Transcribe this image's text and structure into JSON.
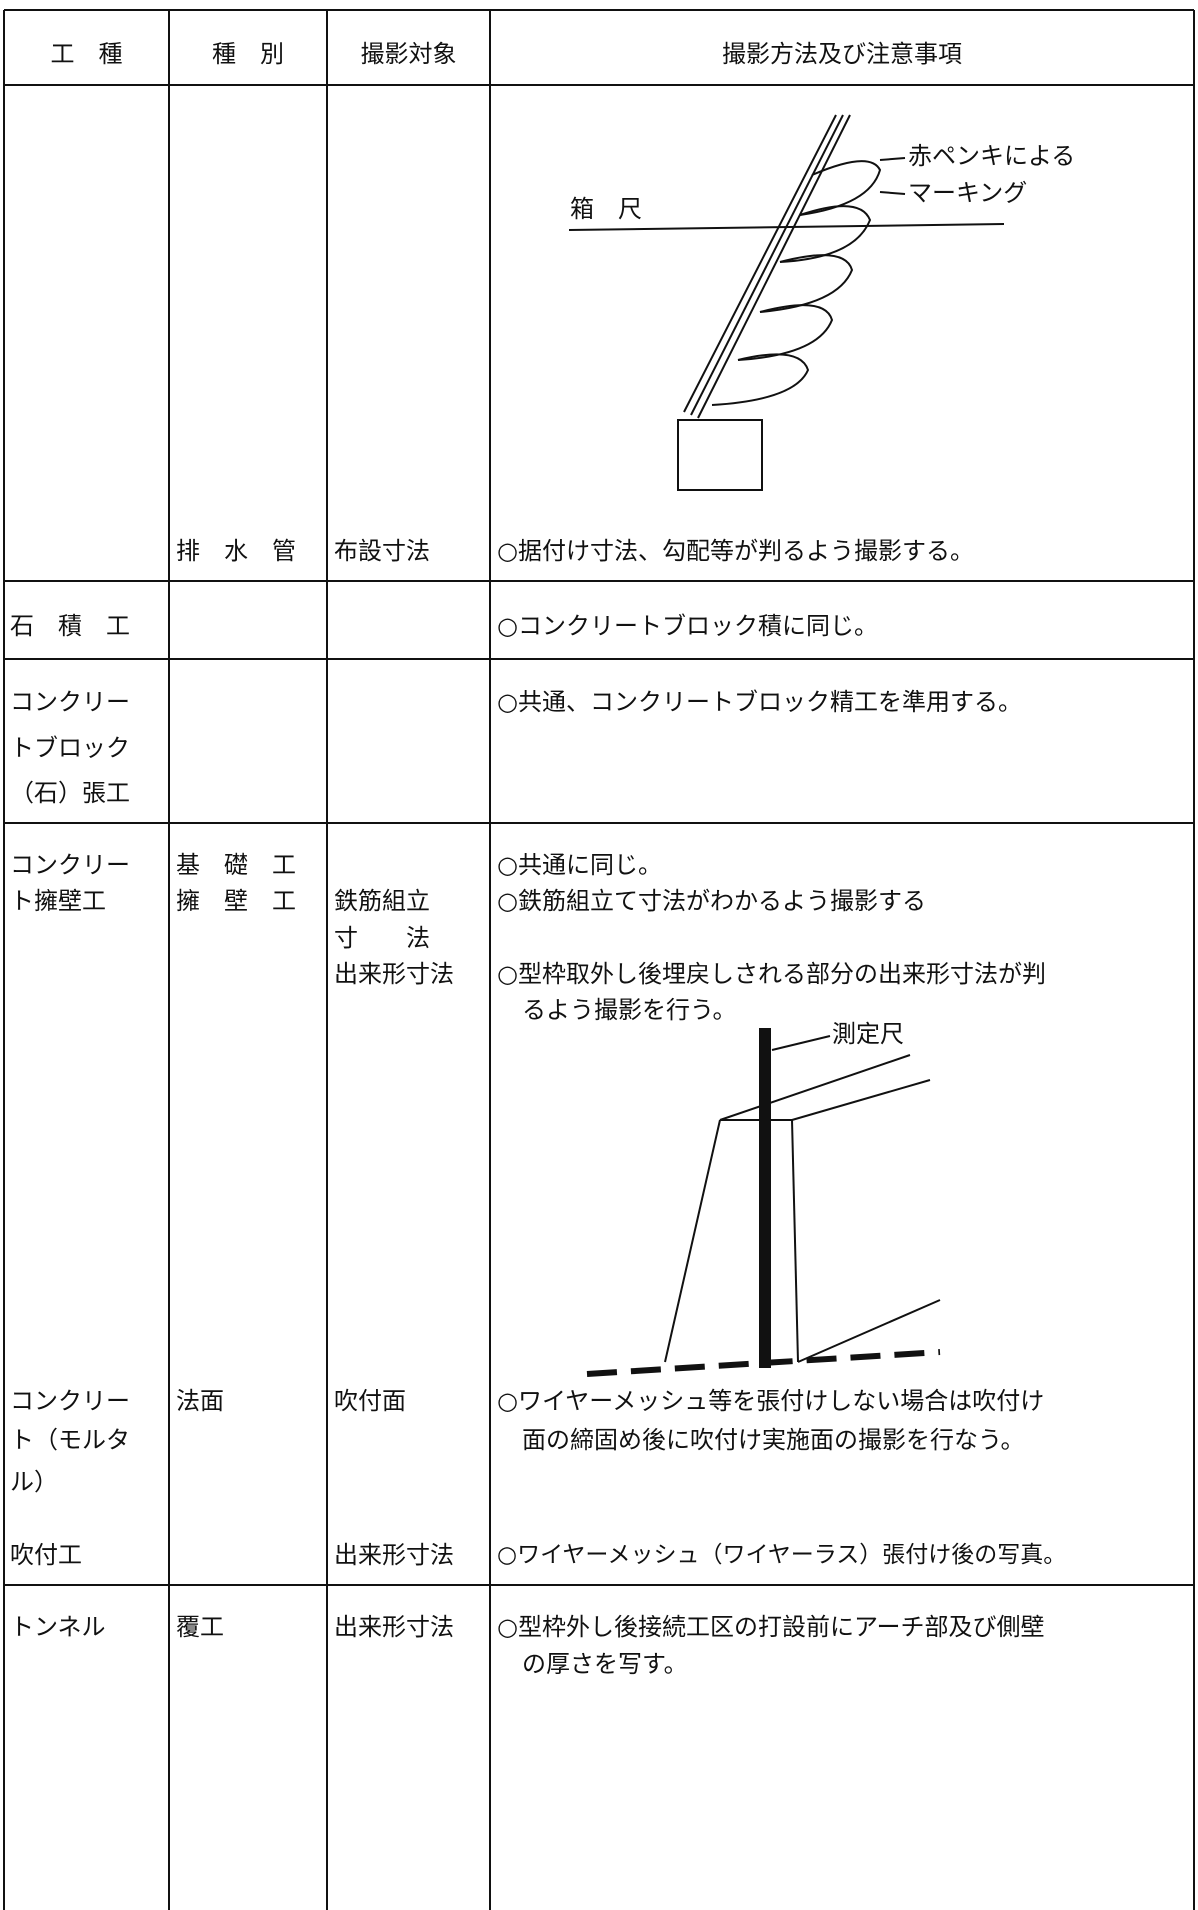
{
  "header": [
    "工　種",
    "種　別",
    "撮影対象",
    "撮影方法及び注意事項"
  ],
  "rows": [
    {
      "category": [
        "排　水　管"
      ],
      "subject": [
        "布設寸法"
      ],
      "notes": [
        "○据付け寸法、勾配等が判るよう撮影する。"
      ],
      "figure": [
        "赤ペンキによる",
        "マーキング",
        "箱　尺"
      ]
    },
    {
      "work": [
        "石　積　工"
      ],
      "notes": [
        "○コンクリートブロック積に同じ。"
      ]
    },
    {
      "work": [
        "コンクリー",
        "トブロック",
        "（石）張工"
      ],
      "notes": [
        "○共通、コンクリートブロック精工を準用する。"
      ]
    },
    {
      "work": [
        "コンクリー",
        "ト擁壁工"
      ],
      "category": [
        "基　礎　工",
        "擁　壁　工"
      ],
      "subject": [
        "鉄筋組立",
        "寸　　法",
        "出来形寸法"
      ],
      "notes": [
        "○共通に同じ。",
        "○鉄筋組立て寸法がわかるよう撮影する",
        "○型枠取外し後埋戻しされる部分の出来形寸法が判",
        "るよう撮影を行う。"
      ],
      "figure": [
        "測定尺"
      ]
    },
    {
      "work": [
        "コンクリー",
        "ト（モルタ",
        "ル）"
      ],
      "category": [
        "法面"
      ],
      "subject": [
        "吹付面"
      ],
      "notes": [
        "○ワイヤーメッシュ等を張付けしない場合は吹付け",
        "面の締固め後に吹付け実施面の撮影を行なう。"
      ]
    },
    {
      "work": [
        "吹付工"
      ],
      "subject": [
        "出来形寸法"
      ],
      "notes": [
        "○ワイヤーメッシュ（ワイヤーラス）張付け後の写真。"
      ]
    },
    {
      "work": [
        "トンネル"
      ],
      "category": [
        "覆工"
      ],
      "subject": [
        "出来形寸法"
      ],
      "notes": [
        "○型枠外し後接続工区の打設前にアーチ部及び側壁",
        "の厚さを写す。"
      ]
    }
  ]
}
